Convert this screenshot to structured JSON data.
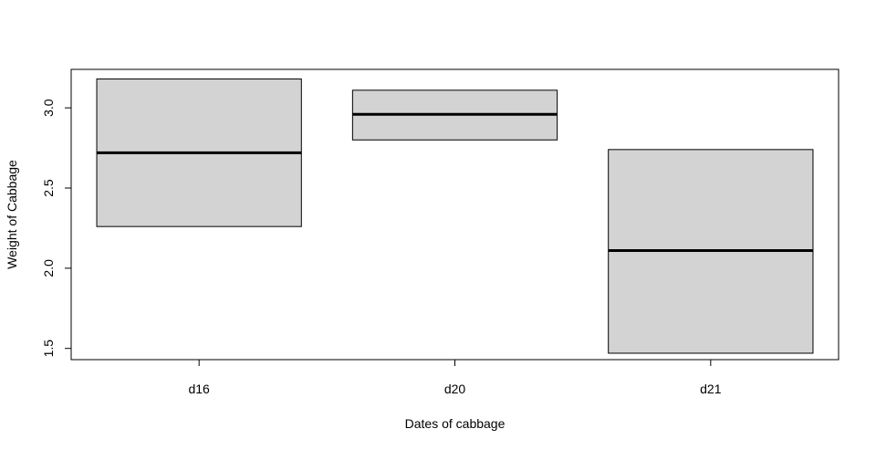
{
  "chart_data": {
    "type": "boxplot",
    "title": "",
    "xlabel": "Dates of cabbage",
    "ylabel": "Weight of Cabbage",
    "categories": [
      "d16",
      "d20",
      "d21"
    ],
    "boxes": [
      {
        "category": "d16",
        "q1": 2.26,
        "median": 2.72,
        "q3": 3.18
      },
      {
        "category": "d20",
        "q1": 2.8,
        "median": 2.96,
        "q3": 3.11
      },
      {
        "category": "d21",
        "q1": 1.47,
        "median": 2.11,
        "q3": 2.74
      }
    ],
    "y_ticks": [
      1.5,
      2.0,
      2.5,
      3.0
    ],
    "y_tick_labels": [
      "1.5",
      "2.0",
      "2.5",
      "3.0"
    ],
    "ylim": [
      1.43,
      3.24
    ],
    "grid": false,
    "legend": "none",
    "box_fill": "#d3d3d3",
    "stroke_color": "#000000"
  }
}
